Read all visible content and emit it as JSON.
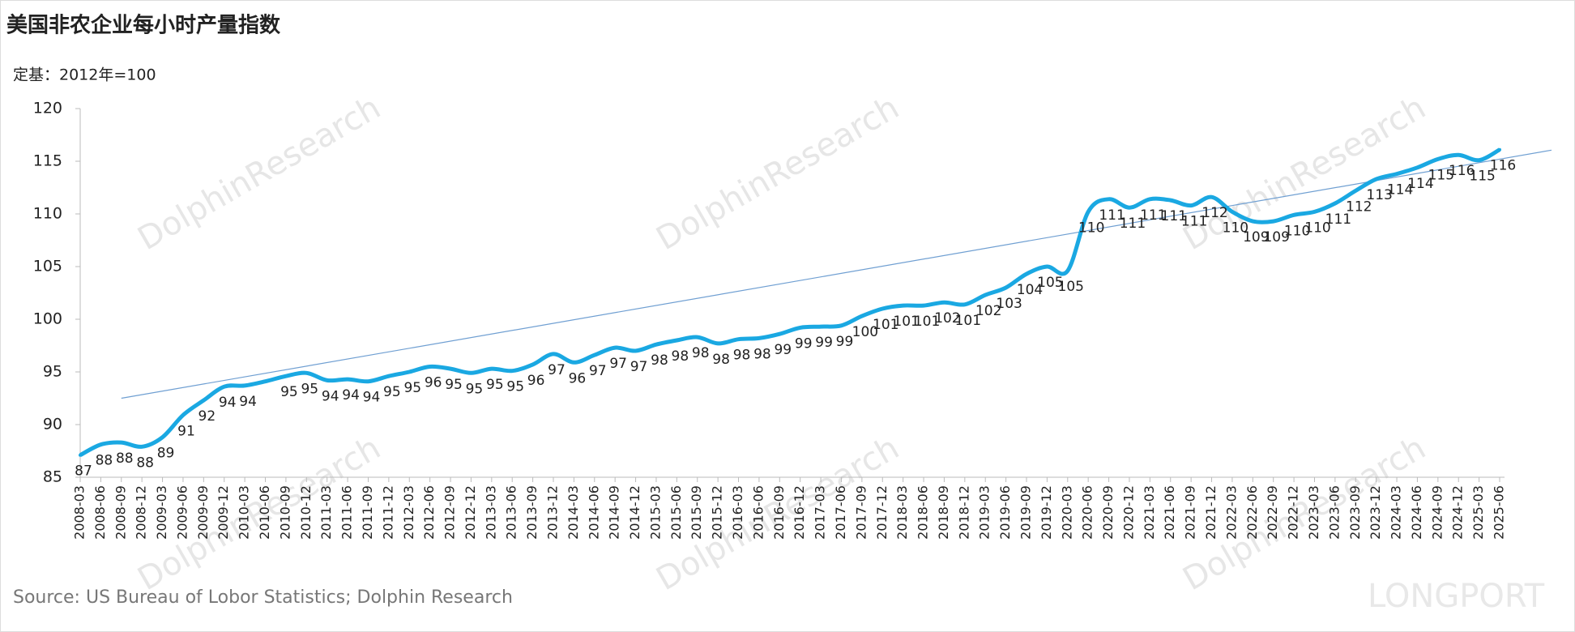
{
  "chart_data": {
    "type": "line",
    "title": "美国非农企业每小时产量指数",
    "subtitle": "定基：2012年=100",
    "source": "Source: US Bureau of Lobor Statistics; Dolphin Research",
    "watermark": "DolphinResearch",
    "logo": "LONGPORT",
    "categories": [
      "2008-03",
      "2008-06",
      "2008-09",
      "2008-12",
      "2009-03",
      "2009-06",
      "2009-09",
      "2009-12",
      "2010-03",
      "2010-06",
      "2010-09",
      "2010-12",
      "2011-03",
      "2011-06",
      "2011-09",
      "2011-12",
      "2012-03",
      "2012-06",
      "2012-09",
      "2012-12",
      "2013-03",
      "2013-06",
      "2013-09",
      "2013-12",
      "2014-03",
      "2014-06",
      "2014-09",
      "2014-12",
      "2015-03",
      "2015-06",
      "2015-09",
      "2015-12",
      "2016-03",
      "2016-06",
      "2016-09",
      "2016-12",
      "2017-03",
      "2017-06",
      "2017-09",
      "2017-12",
      "2018-03",
      "2018-06",
      "2018-09",
      "2018-12",
      "2019-03",
      "2019-06",
      "2019-09",
      "2019-12",
      "2020-03",
      "2020-06",
      "2020-09",
      "2020-12",
      "2021-03",
      "2021-06",
      "2021-09",
      "2021-12",
      "2022-03",
      "2022-06",
      "2022-09",
      "2022-12",
      "2023-03",
      "2023-06",
      "2023-09",
      "2023-12",
      "2024-03",
      "2024-06",
      "2024-09",
      "2024-12",
      "2025-03",
      "2025-06"
    ],
    "color": "#1aa8e2",
    "values": [
      87.1,
      88.1,
      88.3,
      87.9,
      88.8,
      90.9,
      92.3,
      93.6,
      93.7,
      94.1,
      94.6,
      94.9,
      94.2,
      94.3,
      94.1,
      94.6,
      95.0,
      95.5,
      95.3,
      94.9,
      95.3,
      95.1,
      95.7,
      96.7,
      95.9,
      96.6,
      97.3,
      97.0,
      97.6,
      98.0,
      98.3,
      97.7,
      98.1,
      98.2,
      98.6,
      99.2,
      99.3,
      99.4,
      100.3,
      101.0,
      101.3,
      101.3,
      101.6,
      101.4,
      102.3,
      103.0,
      104.3,
      105.0,
      104.6,
      110.2,
      111.4,
      110.6,
      111.4,
      111.3,
      110.8,
      111.6,
      110.2,
      109.3,
      109.3,
      109.9,
      110.2,
      111.0,
      112.2,
      113.3,
      113.8,
      114.4,
      115.2,
      115.6,
      115.1,
      116.1
    ],
    "value_labels": [
      "87",
      "88",
      "88",
      "88",
      "89",
      "91",
      "92",
      "94",
      "94",
      null,
      "95",
      "95",
      "94",
      "94",
      "94",
      "95",
      "95",
      "96",
      "95",
      "95",
      "95",
      "95",
      "96",
      "97",
      "96",
      "97",
      "97",
      "97",
      "98",
      "98",
      "98",
      "98",
      "98",
      "98",
      "99",
      "99",
      "99",
      "99",
      "100",
      "101",
      "101",
      "101",
      "102",
      "101",
      "102",
      "103",
      "104",
      "105",
      "105",
      "110",
      "111",
      "111",
      "111",
      "111",
      "111",
      "112",
      "110",
      "109",
      "109",
      "110",
      "110",
      "111",
      "112",
      "113",
      "114",
      "114",
      "115",
      "116",
      "115",
      "116"
    ],
    "trendline": {
      "color": "#6f9fd2",
      "start": {
        "x": "2008-09",
        "y": 92.5
      },
      "end": {
        "x": "2025-06",
        "y": 115.2
      }
    },
    "ylim": [
      85,
      120
    ],
    "yticks": [
      85,
      90,
      95,
      100,
      105,
      110,
      115,
      120
    ]
  }
}
